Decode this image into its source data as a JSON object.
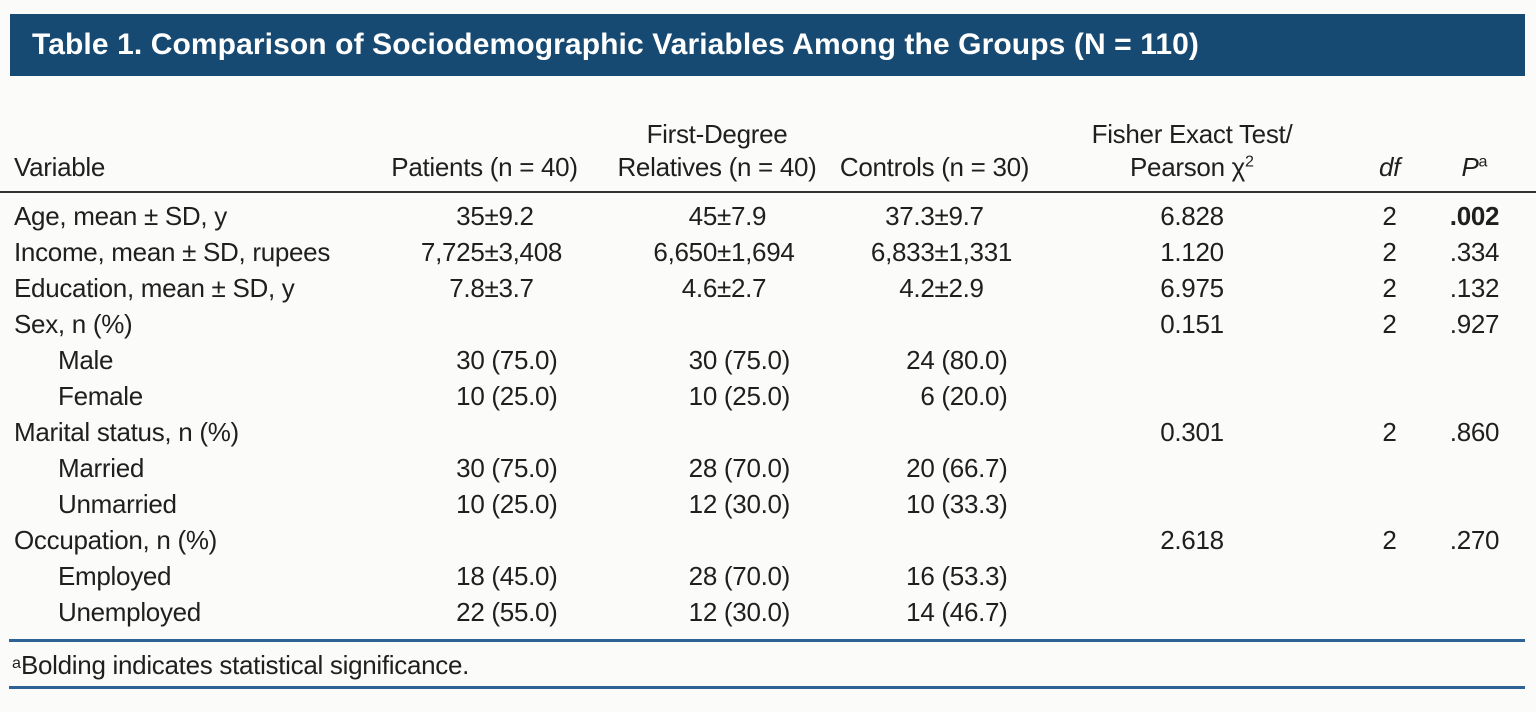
{
  "title": "Table 1. Comparison of Sociodemographic Variables Among the Groups (N = 110)",
  "colors": {
    "title_bar_bg": "#174a72",
    "title_text": "#ffffff",
    "blue_rule": "#2d6394",
    "header_rule": "#333333",
    "body_text": "#1f1f1f",
    "page_bg": "#fbfbfa"
  },
  "table": {
    "headers": {
      "variable": "Variable",
      "patients": "Patients (n = 40)",
      "relatives_line1": "First-Degree",
      "relatives_line2": "Relatives (n = 40)",
      "controls": "Controls (n = 30)",
      "test_line1": "Fisher Exact Test/",
      "test_line2": "Pearson χ",
      "test_line2_sup": "2",
      "df": "df",
      "p": "P",
      "p_sup": "a"
    },
    "rows": [
      {
        "label": "Age, mean ± SD, y",
        "indent": false,
        "patients": "35±9.2",
        "relatives": "45±7.9",
        "controls": "37.3±9.7",
        "stat": "6.828",
        "df": "2",
        "p": ".002",
        "p_bold": true
      },
      {
        "label": "Income, mean ± SD, rupees",
        "indent": false,
        "patients": "7,725±3,408",
        "relatives": "6,650±1,694",
        "controls": "6,833±1,331",
        "stat": "1.120",
        "df": "2",
        "p": ".334",
        "p_bold": false
      },
      {
        "label": "Education, mean ± SD, y",
        "indent": false,
        "patients": "7.8±3.7",
        "relatives": "4.6±2.7",
        "controls": "4.2±2.9",
        "stat": "6.975",
        "df": "2",
        "p": ".132",
        "p_bold": false
      },
      {
        "label": "Sex, n (%)",
        "indent": false,
        "patients": "",
        "relatives": "",
        "controls": "",
        "stat": "0.151",
        "df": "2",
        "p": ".927",
        "p_bold": false
      },
      {
        "label": "Male",
        "indent": true,
        "patients": "30 (75.0)",
        "relatives": "30 (75.0)",
        "controls": "24 (80.0)",
        "stat": "",
        "df": "",
        "p": "",
        "p_bold": false
      },
      {
        "label": "Female",
        "indent": true,
        "patients": "10 (25.0)",
        "relatives": "10 (25.0)",
        "controls": "6 (20.0)",
        "stat": "",
        "df": "",
        "p": "",
        "p_bold": false
      },
      {
        "label": "Marital status, n (%)",
        "indent": false,
        "patients": "",
        "relatives": "",
        "controls": "",
        "stat": "0.301",
        "df": "2",
        "p": ".860",
        "p_bold": false
      },
      {
        "label": "Married",
        "indent": true,
        "patients": "30 (75.0)",
        "relatives": "28 (70.0)",
        "controls": "20 (66.7)",
        "stat": "",
        "df": "",
        "p": "",
        "p_bold": false
      },
      {
        "label": "Unmarried",
        "indent": true,
        "patients": "10 (25.0)",
        "relatives": "12 (30.0)",
        "controls": "10 (33.3)",
        "stat": "",
        "df": "",
        "p": "",
        "p_bold": false
      },
      {
        "label": "Occupation, n (%)",
        "indent": false,
        "patients": "",
        "relatives": "",
        "controls": "",
        "stat": "2.618",
        "df": "2",
        "p": ".270",
        "p_bold": false
      },
      {
        "label": "Employed",
        "indent": true,
        "patients": "18 (45.0)",
        "relatives": "28 (70.0)",
        "controls": "16 (53.3)",
        "stat": "",
        "df": "",
        "p": "",
        "p_bold": false
      },
      {
        "label": "Unemployed",
        "indent": true,
        "patients": "22 (55.0)",
        "relatives": "12 (30.0)",
        "controls": "14 (46.7)",
        "stat": "",
        "df": "",
        "p": "",
        "p_bold": false
      }
    ]
  },
  "footnote": {
    "marker": "a",
    "text": "Bolding indicates statistical significance."
  }
}
